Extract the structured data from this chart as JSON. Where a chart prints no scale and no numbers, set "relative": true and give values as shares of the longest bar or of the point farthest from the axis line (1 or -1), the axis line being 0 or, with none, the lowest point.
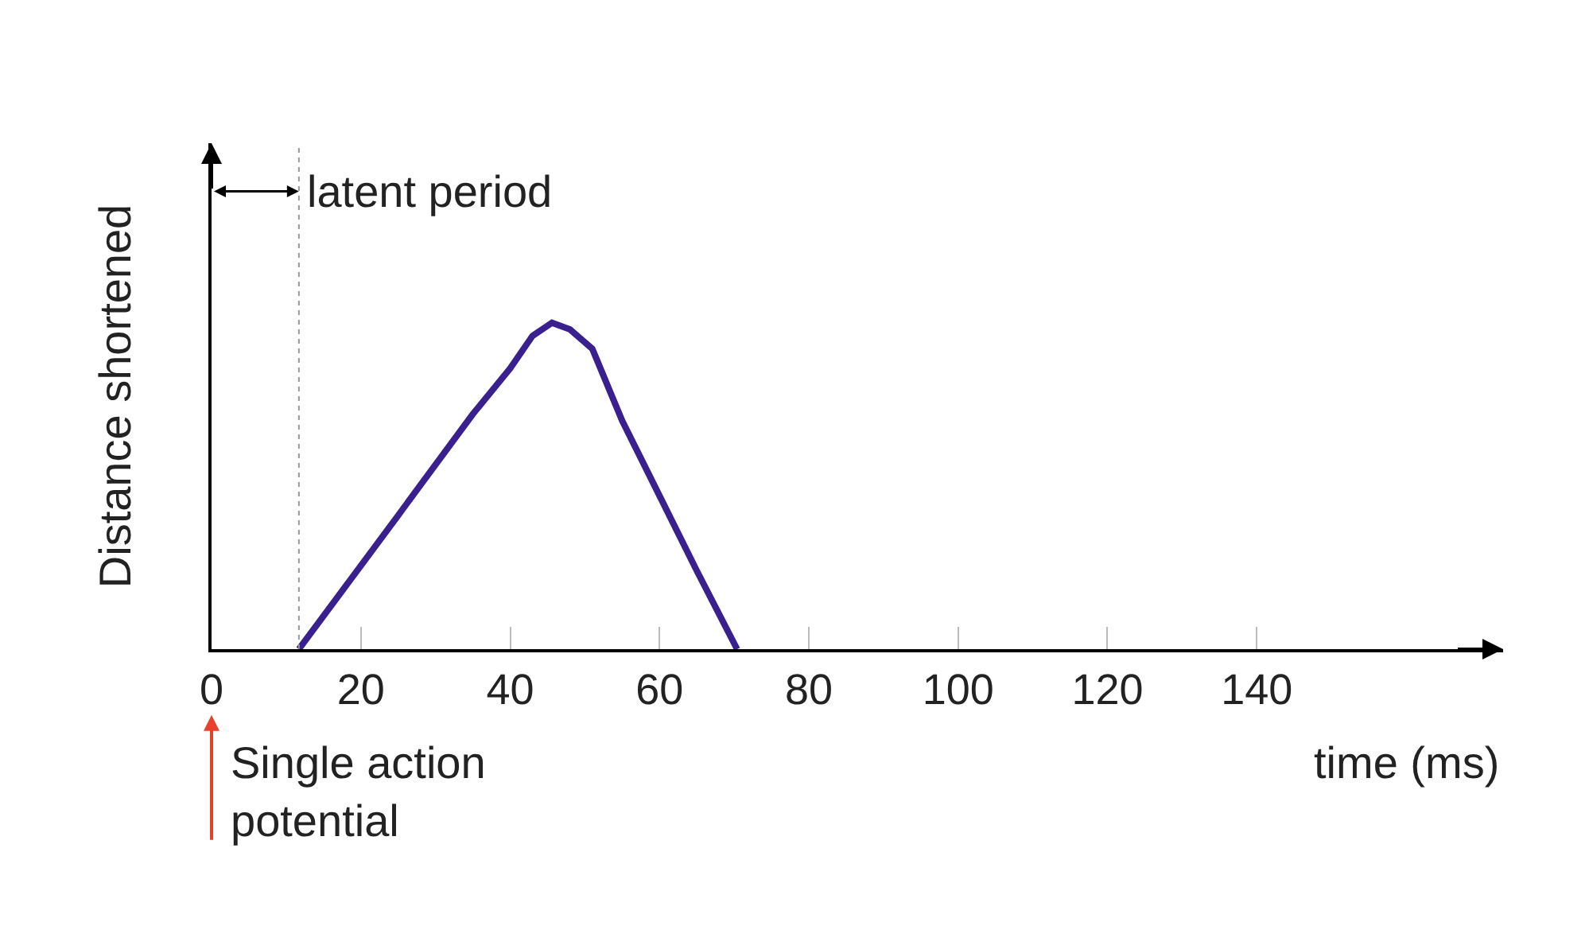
{
  "chart_data": {
    "type": "line",
    "relative": true,
    "xlabel": "time (ms)",
    "ylabel": "Distance shortened",
    "x": [
      11.7,
      25,
      35,
      40,
      43,
      45.6,
      48,
      51,
      55,
      60,
      65,
      70.4
    ],
    "series": [
      {
        "color": "#3a1f8f",
        "values": [
          0,
          0.41,
          0.72,
          0.86,
          0.96,
          1.0,
          0.98,
          0.92,
          0.7,
          0.47,
          0.24,
          0
        ]
      }
    ],
    "xlim": [
      0,
      173
    ],
    "xticks": [
      0,
      20,
      40,
      60,
      80,
      100,
      120,
      140
    ],
    "ref_lines": [
      {
        "axis": "x",
        "value": 11.7,
        "label": "latent period",
        "color": "#999999",
        "line_style": "dotted"
      }
    ],
    "annotations": [
      "Single action potential"
    ],
    "marker": "none",
    "line_style": "solid"
  }
}
